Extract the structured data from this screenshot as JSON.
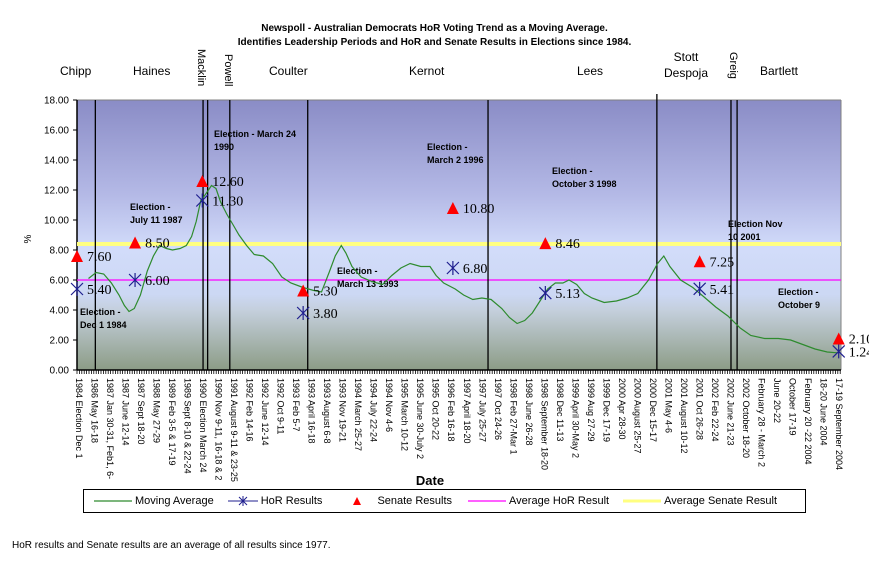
{
  "chart_data": {
    "type": "line",
    "title": "Newspoll - Australian Democrats HoR Voting Trend as a Moving Average.",
    "subtitle": "Identifies Leadership Periods and HoR and Senate Results in Elections since 1984.",
    "xlabel": "Date",
    "ylabel": "%",
    "ylim": [
      0,
      18
    ],
    "yticks": [
      "0.00",
      "2.00",
      "4.00",
      "6.00",
      "8.00",
      "10.00",
      "12.00",
      "14.00",
      "16.00",
      "18.00"
    ],
    "grid": false,
    "legend_position": "bottom",
    "x_categories": [
      "1984 Election Dec 1",
      "1986 May 16-18",
      "1987 Jan 30-31, Feb1, 6-",
      "1987 June 12-14",
      "1987 Sept 18-20",
      "1988 May 27-29",
      "1989 Feb 3-5 & 17-19",
      "1989 Sept 8-10 & 22-24",
      "1990 Election March 24",
      "1990 Nov 9-11, 16-18 & 2",
      "1991 August 9-11 & 23-25",
      "1992 Feb 14-16",
      "1992 June 12-14",
      "1992 Oct 9-11",
      "1993 Feb 5-7",
      "1993 April 16-18",
      "1993 August 6-8",
      "1993 Nov 19-21",
      "1994 March 25-27",
      "1994 July 22-24",
      "1994 Nov 4-6",
      "1995 March 10-12",
      "1995 June 30-July 2",
      "1995 Oct 20-22",
      "1996 Feb 16-18",
      "1997 April 18-20",
      "1997 July 25-27",
      "1997 Oct 24-26",
      "1998 Feb 27-Mar 1",
      "1998 June 26-28",
      "1998 September 18-20",
      "1998 Dec 11-13",
      "1999 April 30-May 2",
      "1999 Aug 27-29",
      "1999 Dec 17-19",
      "2000 Apr 28-30",
      "2000 August 25-27",
      "2000 Dec 15-17",
      "2001 May 4-6",
      "2001 August 10-12",
      "2001 Oct 26-28",
      "2002 Feb 22-24",
      "2002 June 21-23",
      "2002 October 18-20",
      "February 28 - March 2",
      "June 20-22",
      "October 17-19",
      "February 20 -22 2004",
      "18-20 June 2004",
      "17-19 September 2004"
    ],
    "series": [
      {
        "name": "Moving Average",
        "color": "#2e8b2e",
        "points_xfrac_y": [
          [
            0.015,
            6.1
          ],
          [
            0.025,
            6.5
          ],
          [
            0.035,
            6.4
          ],
          [
            0.045,
            5.8
          ],
          [
            0.055,
            5.0
          ],
          [
            0.062,
            4.3
          ],
          [
            0.068,
            3.9
          ],
          [
            0.075,
            4.1
          ],
          [
            0.083,
            5.0
          ],
          [
            0.092,
            6.6
          ],
          [
            0.1,
            7.6
          ],
          [
            0.108,
            8.3
          ],
          [
            0.117,
            8.1
          ],
          [
            0.125,
            8.0
          ],
          [
            0.135,
            8.1
          ],
          [
            0.143,
            8.3
          ],
          [
            0.15,
            8.9
          ],
          [
            0.156,
            9.9
          ],
          [
            0.162,
            11.3
          ],
          [
            0.168,
            11.7
          ],
          [
            0.176,
            12.3
          ],
          [
            0.182,
            12.1
          ],
          [
            0.188,
            11.2
          ],
          [
            0.196,
            10.4
          ],
          [
            0.204,
            9.7
          ],
          [
            0.212,
            9.0
          ],
          [
            0.222,
            8.3
          ],
          [
            0.232,
            7.7
          ],
          [
            0.244,
            7.6
          ],
          [
            0.256,
            7.1
          ],
          [
            0.268,
            6.2
          ],
          [
            0.28,
            5.8
          ],
          [
            0.296,
            5.5
          ],
          [
            0.31,
            5.3
          ],
          [
            0.32,
            5.2
          ],
          [
            0.33,
            6.5
          ],
          [
            0.338,
            7.6
          ],
          [
            0.346,
            8.3
          ],
          [
            0.352,
            7.8
          ],
          [
            0.36,
            6.9
          ],
          [
            0.372,
            6.2
          ],
          [
            0.386,
            5.9
          ],
          [
            0.4,
            5.7
          ],
          [
            0.412,
            6.3
          ],
          [
            0.424,
            6.8
          ],
          [
            0.436,
            7.1
          ],
          [
            0.45,
            6.9
          ],
          [
            0.462,
            6.9
          ],
          [
            0.47,
            6.3
          ],
          [
            0.48,
            5.8
          ],
          [
            0.495,
            5.4
          ],
          [
            0.506,
            5.0
          ],
          [
            0.518,
            4.7
          ],
          [
            0.53,
            4.8
          ],
          [
            0.542,
            4.7
          ],
          [
            0.556,
            4.1
          ],
          [
            0.566,
            3.5
          ],
          [
            0.576,
            3.1
          ],
          [
            0.586,
            3.3
          ],
          [
            0.596,
            3.8
          ],
          [
            0.606,
            4.6
          ],
          [
            0.616,
            5.4
          ],
          [
            0.626,
            5.8
          ],
          [
            0.636,
            5.8
          ],
          [
            0.644,
            6.0
          ],
          [
            0.654,
            5.7
          ],
          [
            0.664,
            5.1
          ],
          [
            0.674,
            4.8
          ],
          [
            0.69,
            4.5
          ],
          [
            0.706,
            4.6
          ],
          [
            0.72,
            4.8
          ],
          [
            0.734,
            5.1
          ],
          [
            0.748,
            6.0
          ],
          [
            0.76,
            7.1
          ],
          [
            0.768,
            7.6
          ],
          [
            0.776,
            6.9
          ],
          [
            0.79,
            6.0
          ],
          [
            0.806,
            5.5
          ],
          [
            0.82,
            4.9
          ],
          [
            0.836,
            4.2
          ],
          [
            0.852,
            3.6
          ],
          [
            0.868,
            2.8
          ],
          [
            0.882,
            2.3
          ],
          [
            0.9,
            2.1
          ],
          [
            0.918,
            2.1
          ],
          [
            0.934,
            2.0
          ],
          [
            0.95,
            1.7
          ],
          [
            0.966,
            1.4
          ],
          [
            0.982,
            1.2
          ],
          [
            0.995,
            1.15
          ]
        ]
      },
      {
        "name": "HoR Results",
        "color": "#1f1f8f",
        "marker": "star",
        "points": [
          {
            "xfrac": 0.0,
            "y": 5.4,
            "label": "5.40"
          },
          {
            "xfrac": 0.076,
            "y": 6.0,
            "label": "6.00"
          },
          {
            "xfrac": 0.164,
            "y": 11.3,
            "label": "11.30"
          },
          {
            "xfrac": 0.296,
            "y": 3.8,
            "label": "3.80"
          },
          {
            "xfrac": 0.492,
            "y": 6.8,
            "label": "6.80"
          },
          {
            "xfrac": 0.613,
            "y": 5.13,
            "label": "5.13"
          },
          {
            "xfrac": 0.815,
            "y": 5.41,
            "label": "5.41"
          },
          {
            "xfrac": 0.997,
            "y": 1.24,
            "label": "1.24"
          }
        ]
      },
      {
        "name": "Senate Results",
        "color": "#ff0000",
        "marker": "triangle",
        "points": [
          {
            "xfrac": 0.0,
            "y": 7.6,
            "label": "7.60"
          },
          {
            "xfrac": 0.076,
            "y": 8.5,
            "label": "8.50"
          },
          {
            "xfrac": 0.164,
            "y": 12.6,
            "label": "12.60"
          },
          {
            "xfrac": 0.296,
            "y": 5.3,
            "label": "5.30"
          },
          {
            "xfrac": 0.492,
            "y": 10.8,
            "label": "10.80"
          },
          {
            "xfrac": 0.613,
            "y": 8.46,
            "label": "8.46"
          },
          {
            "xfrac": 0.815,
            "y": 7.25,
            "label": "7.25"
          },
          {
            "xfrac": 0.997,
            "y": 2.1,
            "label": "2.10"
          }
        ]
      },
      {
        "name": "Average HoR Result",
        "color": "#ff00ff",
        "value": 6.0
      },
      {
        "name": "Average Senate Result",
        "color": "#ffff80",
        "value": 8.4
      }
    ],
    "leadership_periods": [
      {
        "name": "Chipp",
        "style": "normal"
      },
      {
        "name": "Haines",
        "style": "normal"
      },
      {
        "name": "Macklin",
        "style": "rotated"
      },
      {
        "name": "Powell",
        "style": "rotated"
      },
      {
        "name": "Coulter",
        "style": "normal"
      },
      {
        "name": "Kernot",
        "style": "normal"
      },
      {
        "name": "Lees",
        "style": "normal"
      },
      {
        "name": "Stott Despoja",
        "style": "two-line"
      },
      {
        "name": "Greig",
        "style": "rotated"
      },
      {
        "name": "Bartlett",
        "style": "normal"
      }
    ],
    "leadership_boundaries_xfrac": [
      0.024,
      0.165,
      0.171,
      0.2,
      0.302,
      0.538,
      0.759,
      0.856,
      0.864
    ],
    "election_annotations": [
      {
        "line1": "Election -",
        "line2": "Dec 1 1984"
      },
      {
        "line1": "Election -",
        "line2": "July 11 1987"
      },
      {
        "line1": "Election -  March 24",
        "line2": "1990"
      },
      {
        "line1": "Election -",
        "line2": "March 13 1993"
      },
      {
        "line1": "Election -",
        "line2": "March 2 1996"
      },
      {
        "line1": "Election -",
        "line2": "October 3 1998"
      },
      {
        "line1": "Election Nov",
        "line2": "10 2001"
      },
      {
        "line1": "Election -",
        "line2": "October 9"
      }
    ],
    "footnote": "HoR results and Senate results are an average of all results since 1977."
  }
}
